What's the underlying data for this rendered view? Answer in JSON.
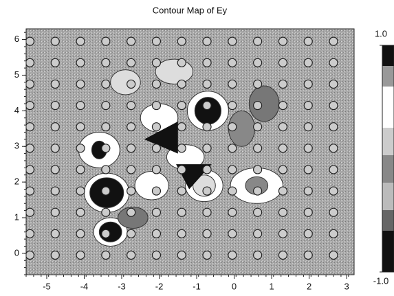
{
  "chart_data": {
    "type": "contour",
    "title": "Contour Map of Ey",
    "xlim": [
      -5.55,
      3.2
    ],
    "xticks": [
      -5,
      -4,
      -3,
      -2,
      -1,
      0,
      1,
      2,
      3
    ],
    "ylim": [
      -0.6,
      6.3
    ],
    "yticks": [
      0,
      1,
      2,
      3,
      4,
      5,
      6
    ],
    "colorbar": {
      "lim": [
        -1,
        1
      ],
      "ticks": [
        {
          "value": 1,
          "label": "1.0"
        },
        {
          "value": -1,
          "label": "-1.0"
        }
      ]
    }
  }
}
